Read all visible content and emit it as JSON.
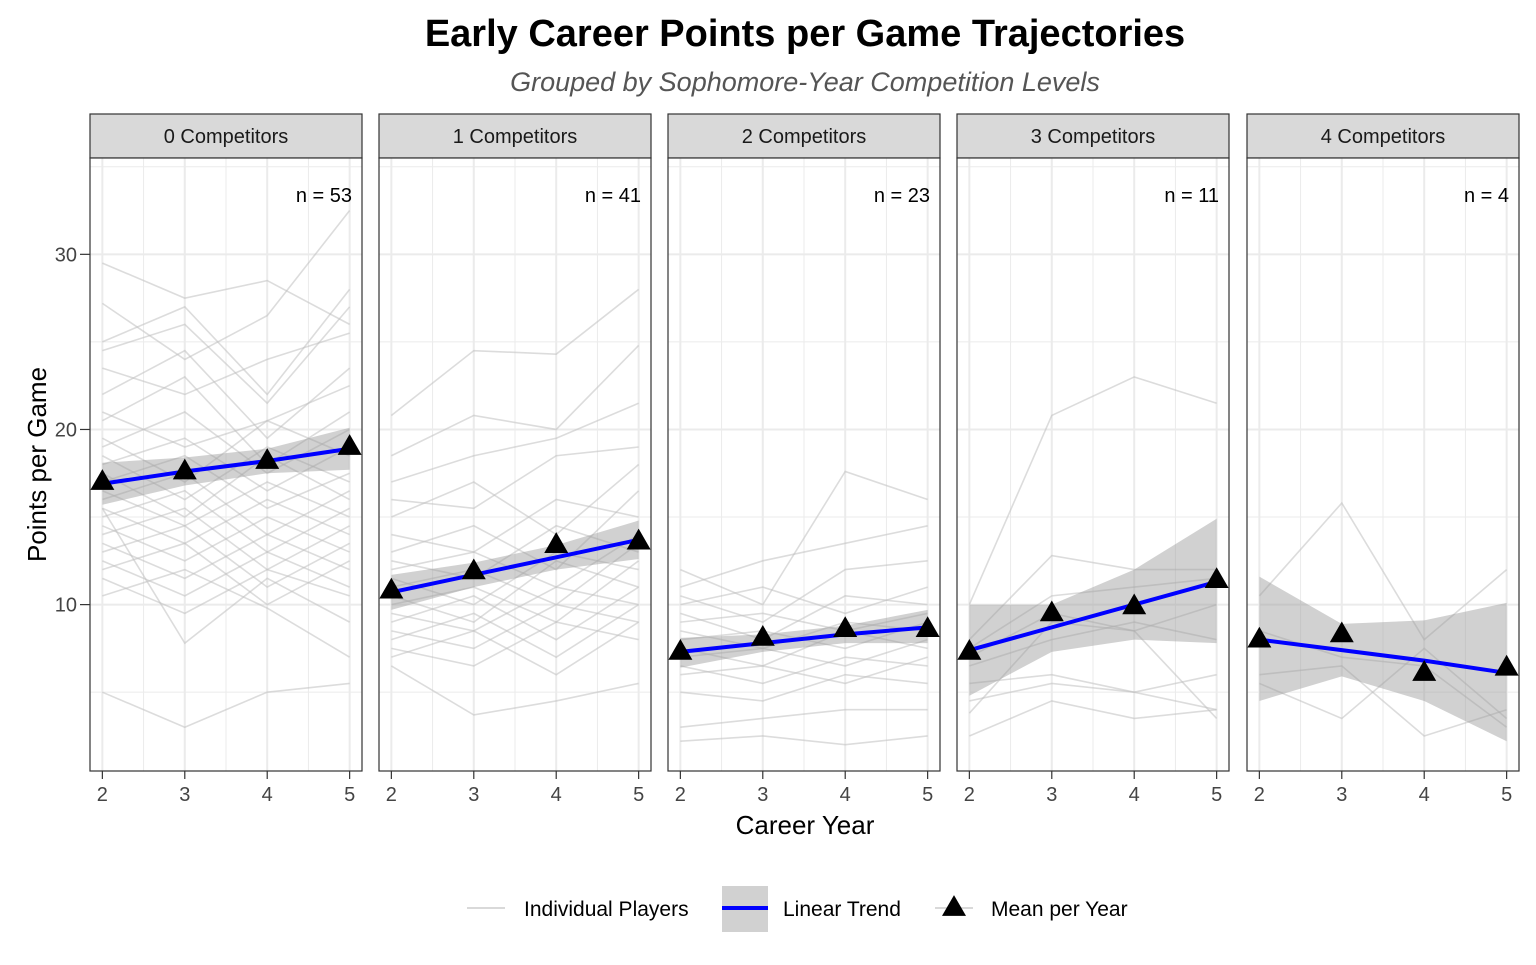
{
  "chart_data": {
    "type": "line",
    "title": "Early Career Points per Game Trajectories",
    "subtitle": "Grouped by Sophomore-Year Competition Levels",
    "xlabel": "Career Year",
    "ylabel": "Points per Game",
    "x": [
      2,
      3,
      4,
      5
    ],
    "ylim": [
      0.5,
      35.5
    ],
    "yticks": [
      10,
      20,
      30
    ],
    "grid": true,
    "legend_position": "bottom",
    "legend": [
      {
        "key": "individual",
        "label": "Individual Players"
      },
      {
        "key": "trend",
        "label": "Linear Trend"
      },
      {
        "key": "mean",
        "label": "Mean per Year"
      }
    ],
    "colors": {
      "individual": "#bfbfbf",
      "trend": "#0000ff",
      "ribbon": "#999999",
      "mean": "#000000",
      "strip": "#d9d9d9",
      "grid": "#ebebeb"
    },
    "panels": [
      {
        "label": "0 Competitors",
        "n_label": "n = 53",
        "mean": [
          17.0,
          17.6,
          18.2,
          19.0
        ],
        "trend": [
          16.9,
          17.6,
          18.2,
          18.9
        ],
        "ci_lower": [
          15.7,
          16.8,
          17.5,
          17.7
        ],
        "ci_upper": [
          18.1,
          18.4,
          18.9,
          20.1
        ],
        "players": [
          [
            29.5,
            27.5,
            28.5,
            26.0
          ],
          [
            27.2,
            24.0,
            26.5,
            32.5
          ],
          [
            25.0,
            27.0,
            22.0,
            28.0
          ],
          [
            24.5,
            26.0,
            21.5,
            27.0
          ],
          [
            23.5,
            22.0,
            24.0,
            25.5
          ],
          [
            22.0,
            24.5,
            19.5,
            23.5
          ],
          [
            21.0,
            19.0,
            20.5,
            22.5
          ],
          [
            20.5,
            23.0,
            18.0,
            21.0
          ],
          [
            19.5,
            17.0,
            20.5,
            18.5
          ],
          [
            19.0,
            21.0,
            17.5,
            20.0
          ],
          [
            18.5,
            16.0,
            19.0,
            17.0
          ],
          [
            18.0,
            19.5,
            16.5,
            19.0
          ],
          [
            17.5,
            15.0,
            18.5,
            16.0
          ],
          [
            17.0,
            18.5,
            15.5,
            17.5
          ],
          [
            16.5,
            14.5,
            17.0,
            15.0
          ],
          [
            16.0,
            17.5,
            14.0,
            16.5
          ],
          [
            15.5,
            13.5,
            16.0,
            14.0
          ],
          [
            15.0,
            16.5,
            13.0,
            15.5
          ],
          [
            14.5,
            12.5,
            15.0,
            13.0
          ],
          [
            14.0,
            15.5,
            12.0,
            14.5
          ],
          [
            13.5,
            11.5,
            14.0,
            12.0
          ],
          [
            13.0,
            14.5,
            11.0,
            13.5
          ],
          [
            12.5,
            10.5,
            13.0,
            11.0
          ],
          [
            12.0,
            13.5,
            10.0,
            12.5
          ],
          [
            11.5,
            9.5,
            12.0,
            10.5
          ],
          [
            10.5,
            12.0,
            9.8,
            7.0
          ],
          [
            5.0,
            3.0,
            5.0,
            5.5
          ],
          [
            15.5,
            7.8,
            11.5,
            9.0
          ]
        ]
      },
      {
        "label": "1 Competitors",
        "n_label": "n = 41",
        "mean": [
          10.8,
          11.9,
          13.4,
          13.6
        ],
        "trend": [
          10.7,
          11.7,
          12.7,
          13.7
        ],
        "ci_lower": [
          9.7,
          11.0,
          12.0,
          12.6
        ],
        "ci_upper": [
          11.7,
          12.4,
          13.4,
          14.8
        ],
        "players": [
          [
            20.8,
            24.5,
            24.3,
            28.0
          ],
          [
            18.5,
            20.8,
            20.0,
            24.8
          ],
          [
            17.0,
            18.5,
            19.5,
            21.5
          ],
          [
            16.0,
            15.5,
            18.5,
            19.0
          ],
          [
            15.0,
            17.0,
            14.0,
            18.0
          ],
          [
            14.0,
            13.0,
            16.0,
            15.0
          ],
          [
            13.0,
            14.5,
            12.0,
            16.5
          ],
          [
            12.5,
            11.5,
            14.5,
            13.0
          ],
          [
            12.0,
            13.0,
            11.0,
            14.0
          ],
          [
            11.5,
            10.0,
            13.0,
            12.0
          ],
          [
            11.0,
            12.0,
            10.0,
            13.5
          ],
          [
            10.5,
            9.0,
            12.5,
            11.0
          ],
          [
            10.0,
            11.0,
            9.0,
            12.5
          ],
          [
            9.5,
            8.5,
            11.0,
            10.0
          ],
          [
            9.0,
            10.5,
            8.0,
            11.0
          ],
          [
            8.5,
            7.5,
            10.0,
            9.0
          ],
          [
            8.0,
            9.5,
            7.0,
            10.0
          ],
          [
            7.5,
            6.5,
            9.0,
            8.0
          ],
          [
            7.0,
            8.5,
            6.0,
            9.0
          ],
          [
            6.5,
            3.7,
            4.5,
            5.5
          ]
        ]
      },
      {
        "label": "2 Competitors",
        "n_label": "n = 23",
        "mean": [
          7.3,
          8.1,
          8.6,
          8.6
        ],
        "trend": [
          7.3,
          7.8,
          8.3,
          8.7
        ],
        "ci_lower": [
          6.4,
          7.3,
          7.8,
          7.8
        ],
        "ci_upper": [
          8.1,
          8.3,
          8.8,
          9.7
        ],
        "players": [
          [
            12.0,
            10.0,
            17.6,
            16.0
          ],
          [
            11.0,
            12.5,
            13.5,
            14.5
          ],
          [
            10.5,
            9.0,
            12.0,
            12.5
          ],
          [
            10.0,
            11.0,
            9.5,
            11.0
          ],
          [
            9.5,
            8.0,
            10.5,
            10.0
          ],
          [
            9.0,
            9.5,
            8.5,
            9.5
          ],
          [
            8.5,
            7.5,
            9.0,
            8.5
          ],
          [
            8.0,
            8.5,
            7.5,
            9.0
          ],
          [
            7.5,
            6.5,
            8.5,
            7.5
          ],
          [
            7.0,
            7.5,
            6.5,
            8.0
          ],
          [
            6.5,
            5.5,
            7.0,
            6.5
          ],
          [
            6.0,
            6.5,
            5.5,
            7.0
          ],
          [
            5.0,
            4.5,
            6.0,
            5.5
          ],
          [
            3.0,
            3.5,
            4.0,
            4.0
          ],
          [
            2.2,
            2.5,
            2.0,
            2.5
          ]
        ]
      },
      {
        "label": "3 Competitors",
        "n_label": "n = 11",
        "mean": [
          7.3,
          9.5,
          9.9,
          11.4
        ],
        "trend": [
          7.4,
          8.7,
          10.0,
          11.3
        ],
        "ci_lower": [
          4.8,
          7.3,
          8.0,
          7.8
        ],
        "ci_upper": [
          10.0,
          10.0,
          12.0,
          14.9
        ],
        "players": [
          [
            10.0,
            20.8,
            23.0,
            21.5
          ],
          [
            8.0,
            12.8,
            12.0,
            12.0
          ],
          [
            7.5,
            10.5,
            11.0,
            11.5
          ],
          [
            7.0,
            9.5,
            8.5,
            10.0
          ],
          [
            6.5,
            8.0,
            9.0,
            8.0
          ],
          [
            5.5,
            6.0,
            5.0,
            4.0
          ],
          [
            4.5,
            5.5,
            5.0,
            6.0
          ],
          [
            3.8,
            9.0,
            8.5,
            3.5
          ],
          [
            2.5,
            4.5,
            3.5,
            4.0
          ]
        ]
      },
      {
        "label": "4 Competitors",
        "n_label": "n = 4",
        "mean": [
          8.0,
          8.3,
          6.1,
          6.4
        ],
        "trend": [
          8.0,
          7.4,
          6.8,
          6.1
        ],
        "ci_lower": [
          4.5,
          5.9,
          4.5,
          2.2
        ],
        "ci_upper": [
          11.6,
          8.9,
          9.1,
          10.1
        ],
        "players": [
          [
            10.5,
            15.8,
            8.0,
            12.0
          ],
          [
            8.5,
            7.0,
            6.5,
            3.0
          ],
          [
            6.0,
            6.5,
            2.5,
            4.0
          ],
          [
            5.5,
            3.5,
            7.5,
            3.5
          ]
        ]
      }
    ]
  }
}
